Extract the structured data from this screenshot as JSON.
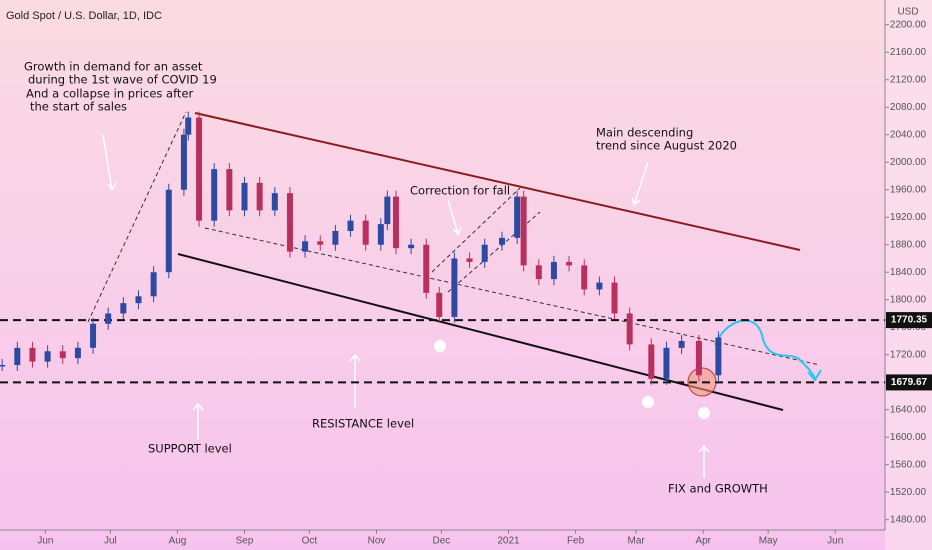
{
  "chart_data": {
    "type": "candlestick",
    "title": "Gold Spot / U.S. Dollar, 1D, IDC",
    "currency": "USD",
    "up_color": "#2e4aa0",
    "down_color": "#b8305e",
    "x": [
      "2020-05-12",
      "2020-05-19",
      "2020-05-26",
      "2020-06-02",
      "2020-06-09",
      "2020-06-16",
      "2020-06-23",
      "2020-06-30",
      "2020-07-07",
      "2020-07-14",
      "2020-07-21",
      "2020-07-28",
      "2020-08-04",
      "2020-08-06",
      "2020-08-11",
      "2020-08-18",
      "2020-08-25",
      "2020-09-01",
      "2020-09-08",
      "2020-09-15",
      "2020-09-22",
      "2020-09-29",
      "2020-10-06",
      "2020-10-13",
      "2020-10-20",
      "2020-10-27",
      "2020-11-03",
      "2020-11-06",
      "2020-11-10",
      "2020-11-17",
      "2020-11-24",
      "2020-11-30",
      "2020-12-07",
      "2020-12-14",
      "2020-12-21",
      "2020-12-29",
      "2021-01-05",
      "2021-01-08",
      "2021-01-15",
      "2021-01-22",
      "2021-01-29",
      "2021-02-05",
      "2021-02-12",
      "2021-02-19",
      "2021-02-26",
      "2021-03-08",
      "2021-03-15",
      "2021-03-22",
      "2021-03-30",
      "2021-04-08"
    ],
    "values": [
      1705,
      1730,
      1710,
      1725,
      1715,
      1730,
      1765,
      1780,
      1795,
      1805,
      1840,
      1960,
      2040,
      2065,
      1915,
      1990,
      1930,
      1970,
      1930,
      1955,
      1870,
      1885,
      1880,
      1900,
      1915,
      1880,
      1910,
      1950,
      1875,
      1880,
      1810,
      1775,
      1860,
      1855,
      1880,
      1890,
      1950,
      1850,
      1830,
      1855,
      1850,
      1815,
      1825,
      1780,
      1735,
      1685,
      1730,
      1740,
      1690,
      1745
    ],
    "xlim": [
      "2020-05-11",
      "2021-06-24"
    ],
    "xticks": [
      {
        "value": "2020-06-01",
        "label": "Jun"
      },
      {
        "value": "2020-07-01",
        "label": "Jul"
      },
      {
        "value": "2020-08-01",
        "label": "Aug"
      },
      {
        "value": "2020-09-01",
        "label": "Sep"
      },
      {
        "value": "2020-10-01",
        "label": "Oct"
      },
      {
        "value": "2020-11-01",
        "label": "Nov"
      },
      {
        "value": "2020-12-01",
        "label": "Dec"
      },
      {
        "value": "2021-01-01",
        "label": "2021"
      },
      {
        "value": "2021-02-01",
        "label": "Feb"
      },
      {
        "value": "2021-03-01",
        "label": "Mar"
      },
      {
        "value": "2021-04-01",
        "label": "Apr"
      },
      {
        "value": "2021-05-01",
        "label": "May"
      },
      {
        "value": "2021-06-01",
        "label": "Jun"
      }
    ],
    "ylim": [
      1465,
      2236
    ],
    "yticks": [
      {
        "value": 1480,
        "label": "1480.00"
      },
      {
        "value": 1520,
        "label": "1520.00"
      },
      {
        "value": 1560,
        "label": "1560.00"
      },
      {
        "value": 1600,
        "label": "1600.00"
      },
      {
        "value": 1640,
        "label": "1640.00"
      },
      {
        "value": 1680,
        "label": "1680.00"
      },
      {
        "value": 1720,
        "label": "1720.00"
      },
      {
        "value": 1760,
        "label": "1760.00"
      },
      {
        "value": 1800,
        "label": "1800.00"
      },
      {
        "value": 1840,
        "label": "1840.00"
      },
      {
        "value": 1880,
        "label": "1880.00"
      },
      {
        "value": 1920,
        "label": "1920.00"
      },
      {
        "value": 1960,
        "label": "1960.00"
      },
      {
        "value": 2000,
        "label": "2000.00"
      },
      {
        "value": 2040,
        "label": "2040.00"
      },
      {
        "value": 2080,
        "label": "2080.00"
      },
      {
        "value": 2120,
        "label": "2120.00"
      },
      {
        "value": 2160,
        "label": "2160.00"
      },
      {
        "value": 2200,
        "label": "2200.00"
      }
    ],
    "levels": [
      1770.35,
      1679.67
    ],
    "annotations": {
      "covid": [
        "Growth in demand for an asset",
        "during the 1st wave of COVID 19",
        "And a collapse in prices after",
        "the start of sales"
      ],
      "trend": [
        "Main descending",
        "trend since August 2020"
      ],
      "correction": "Correction for fall",
      "support": "SUPPORT level",
      "resistance": "RESISTANCE  level",
      "fix": "FIX and GROWTH"
    }
  }
}
